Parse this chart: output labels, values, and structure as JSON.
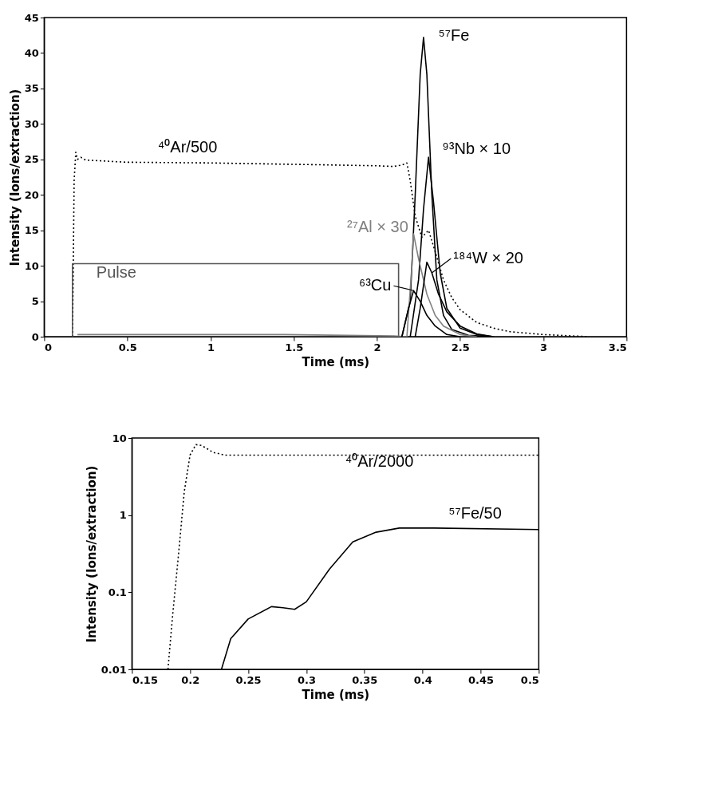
{
  "chart_data": [
    {
      "type": "line",
      "xlabel": "Time (ms)",
      "ylabel": "Intensity  (Ions/extraction)",
      "xlim": [
        0,
        3.5
      ],
      "ylim": [
        0,
        45
      ],
      "xticks": [
        0,
        0.5,
        1,
        1.5,
        2,
        2.5,
        3,
        3.5
      ],
      "yticks": [
        0,
        5,
        10,
        15,
        20,
        25,
        30,
        35,
        40,
        45
      ],
      "grid": false,
      "series": [
        {
          "name": "⁴⁰Ar/500",
          "color": "#000000",
          "line_style": "dotted",
          "x": [
            0.17,
            0.175,
            0.18,
            0.19,
            0.2,
            0.22,
            0.25,
            0.5,
            1,
            1.5,
            2,
            2.1,
            2.15,
            2.18,
            2.2,
            2.23,
            2.27,
            2.31,
            2.35,
            2.4,
            2.45,
            2.5,
            2.6,
            2.7,
            2.8,
            3,
            3.27
          ],
          "values": [
            0,
            10,
            22,
            26,
            25,
            25.3,
            24.9,
            24.6,
            24.5,
            24.3,
            24.1,
            24,
            24.2,
            24.5,
            22,
            17,
            14,
            15,
            12,
            8,
            5.5,
            3.8,
            2,
            1.2,
            0.7,
            0.3,
            0
          ]
        },
        {
          "name": "Pulse",
          "color": "#555555",
          "line_style": "solid",
          "x": [
            0.17,
            0.17,
            2.13,
            2.13
          ],
          "values": [
            0,
            10.3,
            10.3,
            0
          ]
        },
        {
          "name": "⁵⁷Fe",
          "color": "#000000",
          "line_style": "solid",
          "x": [
            2.15,
            2.2,
            2.23,
            2.26,
            2.28,
            2.3,
            2.33,
            2.36,
            2.4,
            2.45,
            2.55,
            2.7
          ],
          "values": [
            0,
            5,
            20,
            37,
            42.2,
            37,
            20,
            8,
            3,
            1,
            0.2,
            0
          ]
        },
        {
          "name": "⁹³Nb × 10",
          "color": "#000000",
          "line_style": "solid",
          "x": [
            2.2,
            2.25,
            2.28,
            2.31,
            2.34,
            2.38,
            2.42,
            2.5,
            2.6,
            2.7
          ],
          "values": [
            0,
            8,
            18,
            25.3,
            19,
            9,
            4,
            1.2,
            0.3,
            0
          ]
        },
        {
          "name": "²⁷Al × 30",
          "color": "#808080",
          "line_style": "solid",
          "x": [
            0.2,
            1.45,
            2.1,
            2.18,
            2.21,
            2.22,
            2.25,
            2.3,
            2.35,
            2.4,
            2.5,
            2.6
          ],
          "values": [
            0.3,
            0.3,
            0.1,
            0,
            10,
            14.5,
            11,
            6,
            3,
            1.5,
            0.3,
            0
          ]
        },
        {
          "name": "¹⁸⁴W × 20",
          "color": "#000000",
          "line_style": "solid",
          "x": [
            2.23,
            2.26,
            2.3,
            2.33,
            2.37,
            2.42,
            2.5,
            2.6,
            2.7
          ],
          "values": [
            0,
            4,
            10.5,
            9,
            6,
            3.5,
            1.5,
            0.4,
            0
          ]
        },
        {
          "name": "⁶³Cu",
          "color": "#000000",
          "line_style": "solid",
          "x": [
            2.15,
            2.19,
            2.22,
            2.26,
            2.3,
            2.35,
            2.42,
            2.5
          ],
          "values": [
            0,
            4,
            6.5,
            5,
            3,
            1.5,
            0.3,
            0
          ]
        }
      ]
    },
    {
      "type": "line",
      "xlabel": "Time (ms)",
      "ylabel": "Intensity  (Ions/extraction)",
      "log": "y",
      "xlim": [
        0.15,
        0.5
      ],
      "ylim": [
        0.01,
        10
      ],
      "xticks": [
        0.15,
        0.2,
        0.25,
        0.3,
        0.35,
        0.4,
        0.45,
        0.5
      ],
      "yticks": [
        0.01,
        0.1,
        1,
        10
      ],
      "grid": false,
      "series": [
        {
          "name": "⁴⁰Ar/2000",
          "color": "#000000",
          "line_style": "dotted",
          "x": [
            0.181,
            0.185,
            0.19,
            0.195,
            0.2,
            0.205,
            0.21,
            0.22,
            0.23,
            0.3,
            0.4,
            0.5
          ],
          "values": [
            0.01,
            0.05,
            0.3,
            2,
            6,
            8.2,
            8,
            6.5,
            6,
            6,
            6,
            6
          ]
        },
        {
          "name": "⁵⁷Fe/50",
          "color": "#000000",
          "line_style": "solid",
          "x": [
            0.227,
            0.235,
            0.25,
            0.27,
            0.28,
            0.29,
            0.3,
            0.32,
            0.34,
            0.36,
            0.38,
            0.41,
            0.5
          ],
          "values": [
            0.01,
            0.025,
            0.045,
            0.065,
            0.063,
            0.06,
            0.075,
            0.2,
            0.45,
            0.6,
            0.68,
            0.68,
            0.65
          ]
        }
      ]
    }
  ]
}
